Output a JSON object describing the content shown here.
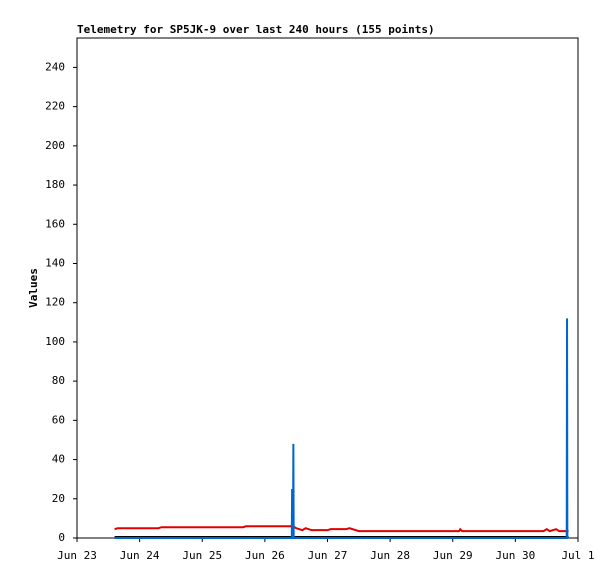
{
  "chart_data": {
    "type": "line",
    "title": "Telemetry for SP5JK-9 over last 240 hours (155 points)",
    "y_label": "Values",
    "xlim": [
      0,
      8
    ],
    "xticks": [
      {
        "value": 0,
        "label": "Jun 23"
      },
      {
        "value": 1,
        "label": "Jun 24"
      },
      {
        "value": 2,
        "label": "Jun 25"
      },
      {
        "value": 3,
        "label": "Jun 26"
      },
      {
        "value": 4,
        "label": "Jun 27"
      },
      {
        "value": 5,
        "label": "Jun 28"
      },
      {
        "value": 6,
        "label": "Jun 29"
      },
      {
        "value": 7,
        "label": "Jun 30"
      },
      {
        "value": 8,
        "label": "Jul 1"
      }
    ],
    "ylim": [
      0,
      255
    ],
    "yticks": [
      0,
      20,
      40,
      60,
      80,
      100,
      120,
      140,
      160,
      180,
      200,
      220,
      240
    ],
    "series": [
      {
        "color": "#000000",
        "x": [
          0.6,
          7.85
        ],
        "values": [
          0.5,
          0.5
        ]
      },
      {
        "color": "#e00000",
        "x": [
          0.6,
          0.65,
          1.3,
          1.35,
          2.65,
          2.7,
          3.45,
          3.5,
          3.6,
          3.65,
          3.75,
          4.0,
          4.05,
          4.3,
          4.35,
          4.5,
          6.1,
          6.12,
          6.15,
          7.45,
          7.5,
          7.55,
          7.65,
          7.7,
          7.85
        ],
        "values": [
          4.5,
          5,
          5,
          5.5,
          5.5,
          6,
          6,
          5,
          4,
          5,
          4,
          4,
          4.5,
          4.5,
          5,
          3.5,
          3.5,
          4.5,
          3.5,
          3.5,
          4.5,
          3.5,
          4.5,
          3.5,
          3.5
        ]
      },
      {
        "color": "#0066cc",
        "x": [
          0.6,
          3.43,
          3.435,
          3.44,
          3.45,
          3.455,
          3.46,
          7.82,
          7.825,
          7.83
        ],
        "values": [
          0,
          0,
          25,
          0,
          0,
          48,
          0,
          0,
          112,
          0
        ]
      }
    ]
  }
}
